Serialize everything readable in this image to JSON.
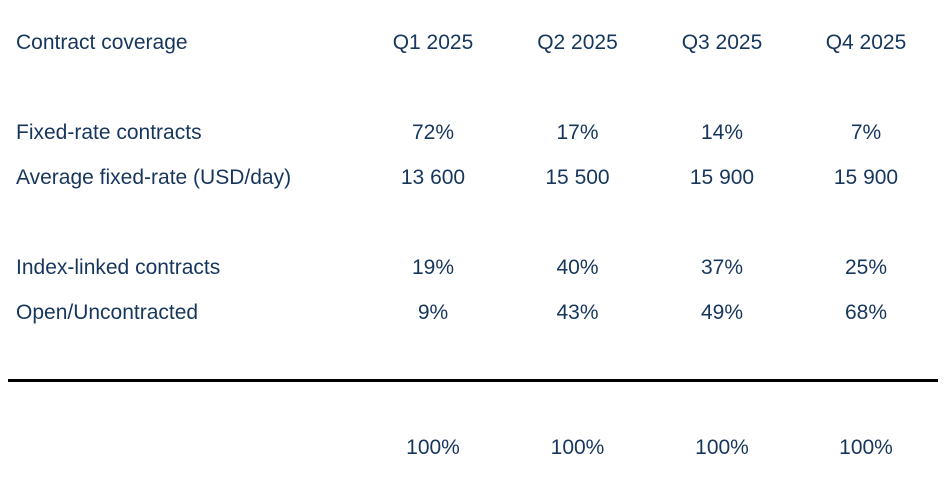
{
  "table": {
    "header": {
      "label": "Contract coverage",
      "columns": [
        "Q1 2025",
        "Q2 2025",
        "Q3 2025",
        "Q4 2025"
      ]
    },
    "rows": [
      {
        "label": "Fixed-rate contracts",
        "values": [
          "72%",
          "17%",
          "14%",
          "7%"
        ]
      },
      {
        "label": "Average fixed-rate (USD/day)",
        "values": [
          "13 600",
          "15 500",
          "15 900",
          "15 900"
        ]
      },
      {
        "label": "Index-linked contracts",
        "values": [
          "19%",
          "40%",
          "37%",
          "25%"
        ]
      },
      {
        "label": "Open/Uncontracted",
        "values": [
          "9%",
          "43%",
          "49%",
          "68%"
        ]
      }
    ],
    "totals": {
      "values": [
        "100%",
        "100%",
        "100%",
        "100%"
      ]
    }
  },
  "colors": {
    "text": "#17365d",
    "rule": "#000000",
    "background": "#ffffff"
  }
}
